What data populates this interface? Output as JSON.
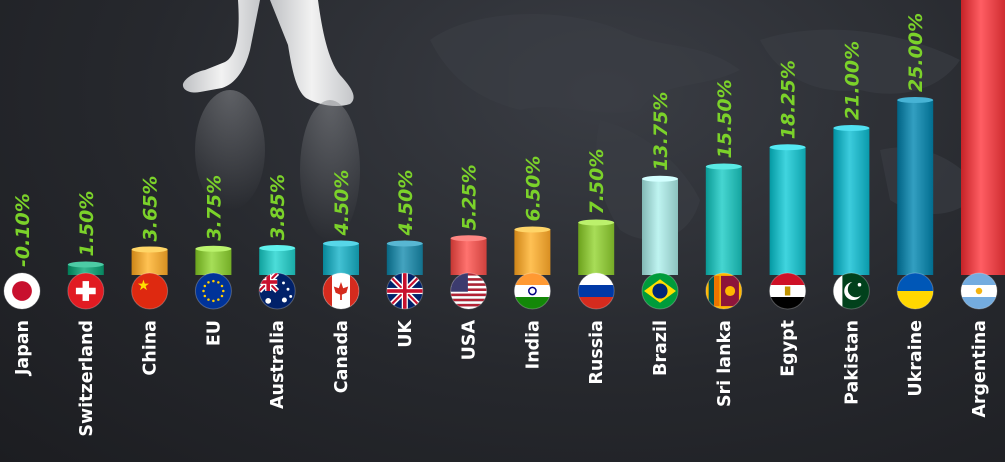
{
  "chart_data": {
    "type": "bar",
    "title": "",
    "xlabel": "",
    "ylabel": "",
    "ylim": [
      -1,
      28
    ],
    "categories": [
      "Japan",
      "Switzerland",
      "China",
      "EU",
      "Australia",
      "Canada",
      "UK",
      "USA",
      "India",
      "Russia",
      "Brazil",
      "Sri lanka",
      "Egypt",
      "Pakistan",
      "Ukraine",
      "Argentina"
    ],
    "values": [
      -0.1,
      1.5,
      3.65,
      3.75,
      3.85,
      4.5,
      4.5,
      5.25,
      6.5,
      7.5,
      13.75,
      15.5,
      18.25,
      21.0,
      25.0,
      null
    ],
    "value_labels": [
      "-0.10%",
      "1.50%",
      "3.65%",
      "3.75%",
      "3.85%",
      "4.50%",
      "4.50%",
      "5.25%",
      "6.50%",
      "7.50%",
      "13.75%",
      "15.50%",
      "18.25%",
      "21.00%",
      "25.00%",
      ""
    ],
    "bar_colors": [
      "#d8d8d8",
      "#1f9e78",
      "#f0a93a",
      "#8dc63f",
      "#33c4c0",
      "#2aa9bb",
      "#2b8aa6",
      "#e85a56",
      "#f2a83b",
      "#8fc43f",
      "#a6dbd8",
      "#2dbdb8",
      "#27bcc6",
      "#23b3c4",
      "#1a86a8",
      "#e8454a"
    ],
    "flags": [
      "japan-flag",
      "switzerland-flag",
      "china-flag",
      "eu-flag",
      "australia-flag",
      "canada-flag",
      "uk-flag",
      "usa-flag",
      "india-flag",
      "russia-flag",
      "brazil-flag",
      "sri-lanka-flag",
      "egypt-flag",
      "pakistan-flag",
      "ukraine-flag",
      "argentina-flag"
    ]
  }
}
